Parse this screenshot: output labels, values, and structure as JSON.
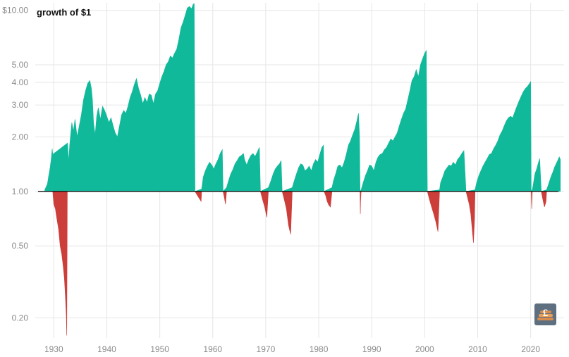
{
  "chart_data": {
    "type": "area",
    "title": "growth of $1",
    "xlabel": "",
    "ylabel": "",
    "y_scale": "log",
    "baseline": 1.0,
    "xlim": [
      1926.5,
      2026.3
    ],
    "ylim": [
      0.155,
      11.0
    ],
    "x_ticks": [
      1930,
      1940,
      1950,
      1960,
      1970,
      1980,
      1990,
      2000,
      2010,
      2020
    ],
    "y_ticks": [
      {
        "value": 10.0,
        "label": "$10.00"
      },
      {
        "value": 5.0,
        "label": "5.00"
      },
      {
        "value": 4.0,
        "label": "4.00"
      },
      {
        "value": 3.0,
        "label": "3.00"
      },
      {
        "value": 2.0,
        "label": "2.00"
      },
      {
        "value": 1.0,
        "label": "1.00"
      },
      {
        "value": 0.5,
        "label": "0.50"
      },
      {
        "value": 0.2,
        "label": "0.20"
      }
    ],
    "grid": true,
    "colors": {
      "gain": "#11b99b",
      "loss": "#cc3e3a",
      "baseline": "#111111",
      "grid": "#e6e6e6"
    },
    "series": [
      {
        "kind": "gain",
        "x": [
          1928.3,
          1928.8,
          1929.0,
          1929.3,
          1929.5,
          1929.7,
          1929.8,
          1932.6,
          1932.8,
          1933.0,
          1933.4,
          1933.7,
          1934.0,
          1934.4,
          1934.8,
          1935.2,
          1935.6,
          1936.0,
          1936.4,
          1936.8,
          1937.1,
          1937.3,
          1937.5,
          1937.8,
          1938.1,
          1938.4,
          1938.8,
          1939.2,
          1939.6,
          1940.0,
          1940.4,
          1940.8,
          1941.2,
          1941.6,
          1942.0,
          1942.4,
          1942.8,
          1943.2,
          1943.6,
          1944.0,
          1944.4,
          1944.8,
          1945.2,
          1945.6,
          1946.0,
          1946.4,
          1946.8,
          1947.2,
          1947.6,
          1948.0,
          1948.4,
          1948.8,
          1949.2,
          1949.6,
          1950.0,
          1950.4,
          1950.8,
          1951.2,
          1951.6,
          1952.0,
          1952.4,
          1952.8,
          1953.2,
          1953.6,
          1954.0,
          1954.4,
          1954.8,
          1955.2,
          1955.6,
          1956.0,
          1956.3,
          1956.5,
          1956.65,
          1957.9,
          1958.2,
          1958.6,
          1959.0,
          1959.4,
          1959.8,
          1960.2,
          1960.6,
          1961.0,
          1961.4,
          1961.8,
          1961.95,
          1962.6,
          1963.0,
          1963.4,
          1963.8,
          1964.2,
          1964.6,
          1965.0,
          1965.4,
          1965.8,
          1966.0,
          1966.4,
          1966.8,
          1967.2,
          1967.6,
          1968.0,
          1968.4,
          1968.8,
          1969.0,
          1970.5,
          1971.0,
          1971.4,
          1971.8,
          1972.2,
          1972.6,
          1972.9,
          1973.1,
          1975.0,
          1975.4,
          1975.8,
          1976.2,
          1976.6,
          1977.0,
          1977.4,
          1977.8,
          1978.2,
          1978.6,
          1979.0,
          1979.4,
          1979.8,
          1980.2,
          1980.6,
          1980.9,
          1981.0,
          1982.5,
          1982.8,
          1983.2,
          1983.6,
          1984.0,
          1984.4,
          1984.8,
          1985.2,
          1985.6,
          1986.0,
          1986.4,
          1986.8,
          1987.2,
          1987.5,
          1987.7,
          1987.8,
          1988.0,
          1988.4,
          1988.8,
          1989.2,
          1989.6,
          1990.0,
          1990.4,
          1990.8,
          1991.2,
          1991.6,
          1992.0,
          1992.4,
          1992.8,
          1993.2,
          1993.6,
          1994.0,
          1994.4,
          1994.8,
          1995.2,
          1995.6,
          1996.0,
          1996.4,
          1996.8,
          1997.2,
          1997.6,
          1998.0,
          1998.4,
          1998.8,
          1999.2,
          1999.6,
          2000.0,
          2000.3,
          2000.5,
          2002.8,
          2003.0,
          2003.4,
          2003.8,
          2004.2,
          2004.6,
          2005.0,
          2005.4,
          2005.8,
          2006.2,
          2006.6,
          2007.0,
          2007.4,
          2007.8,
          2009.5,
          2009.8,
          2010.2,
          2010.6,
          2011.0,
          2011.4,
          2011.8,
          2012.2,
          2012.6,
          2013.0,
          2013.4,
          2013.8,
          2014.2,
          2014.6,
          2015.0,
          2015.4,
          2015.8,
          2016.2,
          2016.6,
          2017.0,
          2017.4,
          2017.8,
          2018.2,
          2018.6,
          2019.0,
          2019.4,
          2019.8,
          2020.0,
          2020.1,
          2020.3,
          2020.5,
          2020.8,
          2021.1,
          2021.4,
          2021.7,
          2022.0,
          2023.0,
          2023.3,
          2023.6,
          2023.9,
          2024.2,
          2024.5,
          2024.8,
          2025.1,
          2025.4,
          2025.6
        ],
        "y": [
          1.02,
          1.1,
          1.2,
          1.35,
          1.5,
          1.72,
          1.6,
          1.85,
          1.45,
          1.8,
          2.4,
          2.15,
          2.5,
          2.0,
          2.3,
          2.65,
          3.2,
          3.6,
          3.95,
          4.1,
          3.7,
          3.2,
          2.4,
          2.05,
          2.6,
          2.9,
          2.5,
          2.95,
          2.8,
          2.6,
          2.4,
          2.55,
          2.3,
          2.1,
          2.0,
          2.3,
          2.65,
          2.8,
          2.7,
          2.95,
          3.3,
          3.55,
          3.9,
          4.2,
          3.7,
          3.4,
          3.05,
          3.3,
          3.1,
          3.45,
          3.4,
          3.05,
          3.45,
          3.6,
          3.95,
          4.3,
          4.6,
          5.0,
          5.2,
          5.6,
          5.45,
          5.8,
          6.1,
          6.9,
          8.0,
          8.6,
          9.4,
          10.3,
          10.5,
          10.2,
          10.8,
          10.9,
          1.0,
          1.03,
          1.2,
          1.3,
          1.38,
          1.45,
          1.4,
          1.33,
          1.42,
          1.5,
          1.62,
          1.7,
          1.0,
          1.05,
          1.15,
          1.25,
          1.32,
          1.42,
          1.48,
          1.55,
          1.58,
          1.62,
          1.5,
          1.4,
          1.5,
          1.58,
          1.62,
          1.56,
          1.65,
          1.75,
          1.0,
          1.05,
          1.15,
          1.25,
          1.33,
          1.38,
          1.42,
          1.48,
          1.0,
          1.05,
          1.15,
          1.25,
          1.35,
          1.42,
          1.4,
          1.3,
          1.33,
          1.38,
          1.3,
          1.42,
          1.5,
          1.45,
          1.6,
          1.75,
          1.8,
          1.0,
          1.05,
          1.15,
          1.25,
          1.38,
          1.4,
          1.35,
          1.45,
          1.6,
          1.8,
          1.9,
          2.05,
          2.2,
          2.45,
          2.7,
          2.0,
          1.0,
          1.02,
          1.12,
          1.22,
          1.3,
          1.4,
          1.38,
          1.3,
          1.45,
          1.55,
          1.6,
          1.62,
          1.7,
          1.75,
          1.85,
          1.95,
          1.9,
          2.0,
          2.1,
          2.3,
          2.5,
          2.7,
          2.85,
          3.2,
          3.6,
          4.1,
          4.3,
          4.7,
          4.3,
          5.0,
          5.4,
          5.8,
          6.0,
          1.0,
          1.02,
          1.12,
          1.2,
          1.3,
          1.35,
          1.4,
          1.38,
          1.45,
          1.4,
          1.5,
          1.55,
          1.62,
          1.68,
          1.0,
          1.02,
          1.12,
          1.22,
          1.3,
          1.38,
          1.45,
          1.52,
          1.6,
          1.62,
          1.72,
          1.8,
          1.9,
          2.05,
          2.15,
          2.3,
          2.45,
          2.55,
          2.6,
          2.55,
          2.75,
          2.95,
          3.15,
          3.35,
          3.55,
          3.7,
          3.8,
          3.95,
          4.05,
          1.0,
          1.02,
          1.1,
          1.25,
          1.32,
          1.42,
          1.52,
          1.0,
          1.02,
          1.08,
          1.15,
          1.22,
          1.28,
          1.36,
          1.42,
          1.48,
          1.55,
          1.5
        ],
        "note": "green fill above 1.00"
      },
      {
        "kind": "loss",
        "x": [
          1929.8,
          1930.0,
          1930.3,
          1930.6,
          1930.9,
          1931.2,
          1931.5,
          1931.8,
          1932.0,
          1932.2,
          1932.35,
          1932.45,
          1932.55,
          1956.65,
          1957.0,
          1957.4,
          1957.8,
          1957.9,
          1961.95,
          1962.2,
          1962.4,
          1962.6,
          1969.0,
          1969.4,
          1969.8,
          1970.2,
          1970.5,
          1973.1,
          1973.5,
          1973.9,
          1974.3,
          1974.7,
          1975.0,
          1981.0,
          1981.3,
          1981.6,
          1981.9,
          1982.2,
          1982.5,
          1987.8,
          1987.85,
          1987.9,
          1988.0,
          2000.5,
          2000.9,
          2001.3,
          2001.7,
          2002.1,
          2002.5,
          2002.8,
          2007.8,
          2008.1,
          2008.4,
          2008.7,
          2009.0,
          2009.2,
          2009.4,
          2009.5,
          2020.1,
          2020.2,
          2020.3,
          2022.0,
          2022.3,
          2022.6,
          2022.9,
          2023.0
        ],
        "y": [
          1.0,
          0.85,
          0.8,
          0.7,
          0.62,
          0.5,
          0.45,
          0.38,
          0.33,
          0.26,
          0.21,
          0.16,
          1.0,
          1.0,
          0.96,
          0.92,
          0.88,
          1.0,
          1.0,
          0.92,
          0.85,
          1.0,
          1.0,
          0.9,
          0.82,
          0.72,
          1.0,
          1.0,
          0.9,
          0.8,
          0.65,
          0.58,
          1.0,
          1.0,
          0.95,
          0.88,
          0.84,
          0.82,
          1.0,
          1.0,
          0.75,
          0.88,
          1.0,
          1.0,
          0.9,
          0.82,
          0.75,
          0.68,
          0.6,
          1.0,
          1.0,
          0.92,
          0.85,
          0.75,
          0.6,
          0.52,
          0.7,
          1.0,
          1.0,
          0.8,
          1.0,
          1.0,
          0.9,
          0.82,
          0.88,
          1.0
        ],
        "note": "red fill below 1.00"
      }
    ]
  },
  "watermark": {
    "icon": "pound-coin-stack-logo",
    "glyph": "£"
  }
}
